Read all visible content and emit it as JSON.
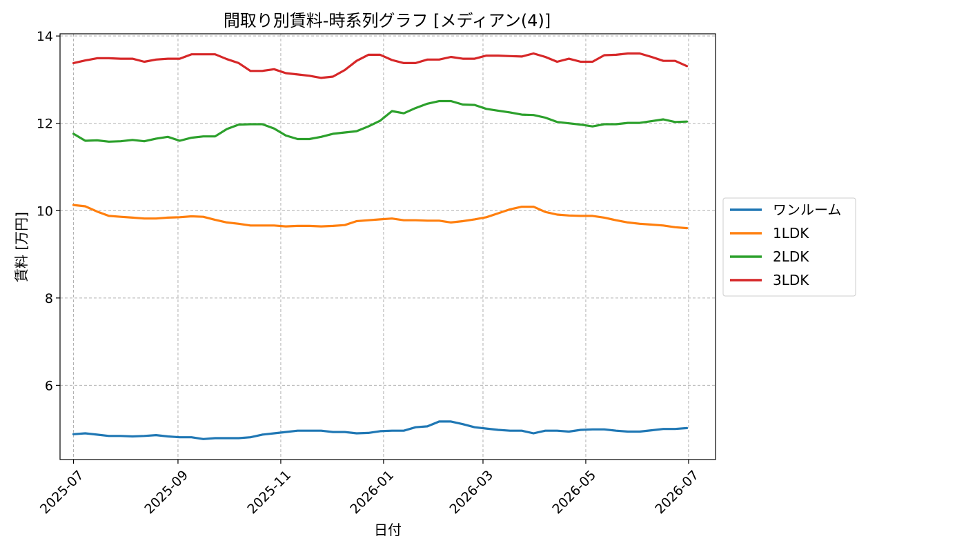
{
  "chart_data": {
    "type": "line",
    "title": "間取り別賃料-時系列グラフ [メディアン(4)]",
    "xlabel": "日付",
    "ylabel": "賃料 [万円]",
    "xlim": [
      "2025-06-23",
      "2026-07-17"
    ],
    "ylim": [
      4.3,
      14.05
    ],
    "x_ticks": [
      "2025-07",
      "2025-09",
      "2025-11",
      "2026-01",
      "2026-03",
      "2026-05",
      "2026-07"
    ],
    "y_ticks": [
      6,
      8,
      10,
      12,
      14
    ],
    "grid": true,
    "legend_position": "right-outside",
    "x": [
      "2025-07-01",
      "2025-07-08",
      "2025-07-15",
      "2025-07-22",
      "2025-07-29",
      "2025-08-05",
      "2025-08-12",
      "2025-08-19",
      "2025-08-26",
      "2025-09-02",
      "2025-09-09",
      "2025-09-16",
      "2025-09-23",
      "2025-09-30",
      "2025-10-07",
      "2025-10-14",
      "2025-10-21",
      "2025-10-28",
      "2025-11-04",
      "2025-11-11",
      "2025-11-18",
      "2025-11-25",
      "2025-12-02",
      "2025-12-09",
      "2025-12-16",
      "2025-12-23",
      "2025-12-30",
      "2026-01-06",
      "2026-01-13",
      "2026-01-20",
      "2026-01-27",
      "2026-02-03",
      "2026-02-10",
      "2026-02-17",
      "2026-02-24",
      "2026-03-03",
      "2026-03-10",
      "2026-03-17",
      "2026-03-24",
      "2026-03-31",
      "2026-04-07",
      "2026-04-14",
      "2026-04-21",
      "2026-04-28",
      "2026-05-05",
      "2026-05-12",
      "2026-05-19",
      "2026-05-26",
      "2026-06-02",
      "2026-06-09",
      "2026-06-16",
      "2026-06-23",
      "2026-06-30"
    ],
    "series": [
      {
        "name": "ワンルーム",
        "color": "#1f77b4",
        "values": [
          4.88,
          4.9,
          4.87,
          4.84,
          4.84,
          4.83,
          4.84,
          4.86,
          4.83,
          4.81,
          4.81,
          4.77,
          4.79,
          4.79,
          4.79,
          4.81,
          4.87,
          4.9,
          4.93,
          4.96,
          4.96,
          4.96,
          4.93,
          4.93,
          4.9,
          4.91,
          4.95,
          4.96,
          4.96,
          5.04,
          5.06,
          5.17,
          5.17,
          5.11,
          5.04,
          5.01,
          4.98,
          4.96,
          4.96,
          4.9,
          4.96,
          4.96,
          4.94,
          4.98,
          4.99,
          4.99,
          4.96,
          4.94,
          4.94,
          4.97,
          5.0,
          5.0,
          5.02
        ]
      },
      {
        "name": "1LDK",
        "color": "#ff7f0e",
        "values": [
          10.13,
          10.1,
          9.98,
          9.88,
          9.86,
          9.84,
          9.82,
          9.82,
          9.84,
          9.85,
          9.87,
          9.86,
          9.79,
          9.73,
          9.7,
          9.66,
          9.66,
          9.66,
          9.64,
          9.65,
          9.65,
          9.64,
          9.65,
          9.67,
          9.76,
          9.78,
          9.8,
          9.82,
          9.78,
          9.78,
          9.77,
          9.77,
          9.73,
          9.76,
          9.8,
          9.85,
          9.94,
          10.03,
          10.09,
          10.09,
          9.97,
          9.91,
          9.89,
          9.88,
          9.88,
          9.84,
          9.78,
          9.73,
          9.7,
          9.68,
          9.66,
          9.62,
          9.6
        ]
      },
      {
        "name": "2LDK",
        "color": "#2ca02c",
        "values": [
          11.76,
          11.6,
          11.61,
          11.58,
          11.59,
          11.62,
          11.59,
          11.65,
          11.69,
          11.6,
          11.67,
          11.7,
          11.7,
          11.87,
          11.97,
          11.98,
          11.98,
          11.88,
          11.72,
          11.64,
          11.64,
          11.69,
          11.76,
          11.79,
          11.82,
          11.93,
          12.06,
          12.28,
          12.23,
          12.35,
          12.45,
          12.51,
          12.51,
          12.43,
          12.42,
          12.33,
          12.29,
          12.25,
          12.2,
          12.19,
          12.13,
          12.03,
          12.0,
          11.97,
          11.93,
          11.98,
          11.98,
          12.01,
          12.01,
          12.05,
          12.09,
          12.03,
          12.04
        ]
      },
      {
        "name": "3LDK",
        "color": "#d62728",
        "values": [
          13.38,
          13.44,
          13.49,
          13.49,
          13.48,
          13.48,
          13.41,
          13.46,
          13.48,
          13.48,
          13.58,
          13.58,
          13.58,
          13.47,
          13.38,
          13.2,
          13.2,
          13.24,
          13.15,
          13.12,
          13.09,
          13.04,
          13.07,
          13.22,
          13.43,
          13.57,
          13.57,
          13.45,
          13.38,
          13.38,
          13.46,
          13.46,
          13.52,
          13.48,
          13.48,
          13.55,
          13.55,
          13.54,
          13.53,
          13.6,
          13.52,
          13.41,
          13.48,
          13.41,
          13.41,
          13.56,
          13.57,
          13.6,
          13.6,
          13.52,
          13.43,
          13.43,
          13.31
        ]
      }
    ]
  }
}
